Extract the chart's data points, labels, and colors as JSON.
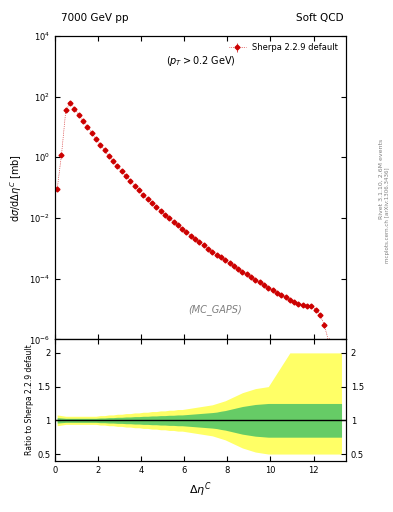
{
  "title_left": "7000 GeV pp",
  "title_right": "Soft QCD",
  "annotation": "(p_{T} > 0.2 GeV)",
  "watermark": "(MC_GAPS)",
  "ylabel_main": "dσ/dΔη$^C$ [mb]",
  "ylabel_ratio": "Ratio to Sherpa 2.2.9 default",
  "xlabel": "Δη$^C$",
  "right_label": "Rivet 3.1.10, 2.6M events\nmcplots.cern.ch [arXiv:1306.3436]",
  "legend_label": "Sherpa 2.2.9 default",
  "line_color": "#cc0000",
  "main_xlim": [
    0,
    13.5
  ],
  "main_ylim_log": [
    -6,
    4
  ],
  "ratio_ylim": [
    0.4,
    2.2
  ],
  "x_data": [
    0.1,
    0.3,
    0.5,
    0.7,
    0.9,
    1.1,
    1.3,
    1.5,
    1.7,
    1.9,
    2.1,
    2.3,
    2.5,
    2.7,
    2.9,
    3.1,
    3.3,
    3.5,
    3.7,
    3.9,
    4.1,
    4.3,
    4.5,
    4.7,
    4.9,
    5.1,
    5.3,
    5.5,
    5.7,
    5.9,
    6.1,
    6.3,
    6.5,
    6.7,
    6.9,
    7.1,
    7.3,
    7.5,
    7.7,
    7.9,
    8.1,
    8.3,
    8.5,
    8.7,
    8.9,
    9.1,
    9.3,
    9.5,
    9.7,
    9.9,
    10.1,
    10.3,
    10.5,
    10.7,
    10.9,
    11.1,
    11.3,
    11.5,
    11.7,
    11.9,
    12.1,
    12.3,
    12.5,
    12.7,
    12.9,
    13.1,
    13.3
  ],
  "y_data": [
    0.09,
    1.2,
    35.0,
    60.0,
    40.0,
    25.0,
    16.0,
    10.0,
    6.5,
    4.0,
    2.6,
    1.7,
    1.1,
    0.75,
    0.5,
    0.35,
    0.24,
    0.165,
    0.115,
    0.082,
    0.058,
    0.042,
    0.031,
    0.023,
    0.017,
    0.013,
    0.0098,
    0.0075,
    0.0057,
    0.0044,
    0.0034,
    0.0026,
    0.0021,
    0.0016,
    0.00125,
    0.00098,
    0.00077,
    0.00062,
    0.0005,
    0.0004,
    0.00032,
    0.00026,
    0.00021,
    0.00017,
    0.000138,
    0.000112,
    9.1e-05,
    7.5e-05,
    6.2e-05,
    5.1e-05,
    4.2e-05,
    3.5e-05,
    2.9e-05,
    2.4e-05,
    2e-05,
    1.7e-05,
    1.5e-05,
    1.4e-05,
    1.3e-05,
    1.3e-05,
    9.5e-06,
    6.5e-06,
    3e-06,
    8.5e-07,
    3.5e-07,
    2.5e-07,
    4.5e-07
  ],
  "yerr_data": [
    0.015,
    0.15,
    2.0,
    2.5,
    1.8,
    1.2,
    0.7,
    0.45,
    0.28,
    0.17,
    0.11,
    0.07,
    0.045,
    0.03,
    0.02,
    0.014,
    0.01,
    0.007,
    0.005,
    0.0035,
    0.0025,
    0.0018,
    0.0013,
    0.001,
    0.0008,
    0.0006,
    0.00045,
    0.00035,
    0.00027,
    0.00021,
    0.00016,
    0.00013,
    0.0001,
    8e-05,
    6.5e-05,
    5.2e-05,
    4.2e-05,
    3.4e-05,
    2.8e-05,
    2.3e-05,
    1.9e-05,
    1.5e-05,
    1.3e-05,
    1.1e-05,
    9e-06,
    7.5e-06,
    6.2e-06,
    5.2e-06,
    4.4e-06,
    3.7e-06,
    3.1e-06,
    2.6e-06,
    2.2e-06,
    1.9e-06,
    1.7e-06,
    1.5e-06,
    1.4e-06,
    1.3e-06,
    1.3e-06,
    1.4e-06,
    1.2e-06,
    1e-06,
    6e-07,
    2.5e-07,
    1.5e-07,
    1.5e-07,
    2e-07
  ],
  "ratio_band_yellow_lo": [
    0.92,
    0.93,
    0.94,
    0.94,
    0.94,
    0.94,
    0.94,
    0.94,
    0.94,
    0.94,
    0.93,
    0.93,
    0.92,
    0.92,
    0.91,
    0.91,
    0.9,
    0.9,
    0.89,
    0.89,
    0.88,
    0.88,
    0.87,
    0.87,
    0.86,
    0.86,
    0.85,
    0.85,
    0.84,
    0.84,
    0.83,
    0.82,
    0.81,
    0.8,
    0.79,
    0.78,
    0.77,
    0.75,
    0.73,
    0.71,
    0.68,
    0.65,
    0.62,
    0.59,
    0.57,
    0.55,
    0.53,
    0.52,
    0.51,
    0.5,
    0.5,
    0.5,
    0.5,
    0.5,
    0.5,
    0.5,
    0.5,
    0.5,
    0.5,
    0.5,
    0.5,
    0.5,
    0.5,
    0.5,
    0.5,
    0.5,
    0.5
  ],
  "ratio_band_yellow_hi": [
    1.08,
    1.07,
    1.06,
    1.06,
    1.06,
    1.06,
    1.06,
    1.06,
    1.06,
    1.06,
    1.07,
    1.07,
    1.08,
    1.08,
    1.09,
    1.09,
    1.1,
    1.1,
    1.11,
    1.11,
    1.12,
    1.12,
    1.13,
    1.13,
    1.14,
    1.14,
    1.15,
    1.15,
    1.16,
    1.16,
    1.17,
    1.18,
    1.19,
    1.2,
    1.21,
    1.22,
    1.23,
    1.25,
    1.27,
    1.29,
    1.32,
    1.35,
    1.38,
    1.41,
    1.43,
    1.45,
    1.47,
    1.48,
    1.49,
    1.5,
    1.6,
    1.7,
    1.8,
    1.9,
    2.0,
    2.0,
    2.0,
    2.0,
    2.0,
    2.0,
    2.0,
    2.0,
    2.0,
    2.0,
    2.0,
    2.0,
    2.0
  ],
  "ratio_band_green_lo": [
    0.96,
    0.965,
    0.97,
    0.97,
    0.97,
    0.97,
    0.97,
    0.97,
    0.97,
    0.97,
    0.965,
    0.965,
    0.96,
    0.96,
    0.955,
    0.955,
    0.95,
    0.95,
    0.945,
    0.945,
    0.94,
    0.94,
    0.935,
    0.935,
    0.93,
    0.93,
    0.925,
    0.925,
    0.92,
    0.92,
    0.915,
    0.91,
    0.905,
    0.9,
    0.895,
    0.89,
    0.885,
    0.878,
    0.865,
    0.855,
    0.84,
    0.825,
    0.81,
    0.795,
    0.785,
    0.775,
    0.765,
    0.76,
    0.755,
    0.75,
    0.75,
    0.75,
    0.75,
    0.75,
    0.75,
    0.75,
    0.75,
    0.75,
    0.75,
    0.75,
    0.75,
    0.75,
    0.75,
    0.75,
    0.75,
    0.75,
    0.75
  ],
  "ratio_band_green_hi": [
    1.04,
    1.035,
    1.03,
    1.03,
    1.03,
    1.03,
    1.03,
    1.03,
    1.03,
    1.03,
    1.035,
    1.035,
    1.04,
    1.04,
    1.045,
    1.045,
    1.05,
    1.05,
    1.055,
    1.055,
    1.06,
    1.06,
    1.065,
    1.065,
    1.07,
    1.07,
    1.075,
    1.075,
    1.08,
    1.08,
    1.085,
    1.09,
    1.095,
    1.1,
    1.105,
    1.11,
    1.115,
    1.122,
    1.135,
    1.145,
    1.16,
    1.175,
    1.19,
    1.205,
    1.215,
    1.225,
    1.235,
    1.24,
    1.245,
    1.25,
    1.25,
    1.25,
    1.25,
    1.25,
    1.25,
    1.25,
    1.25,
    1.25,
    1.25,
    1.25,
    1.25,
    1.25,
    1.25,
    1.25,
    1.25,
    1.25,
    1.25
  ]
}
